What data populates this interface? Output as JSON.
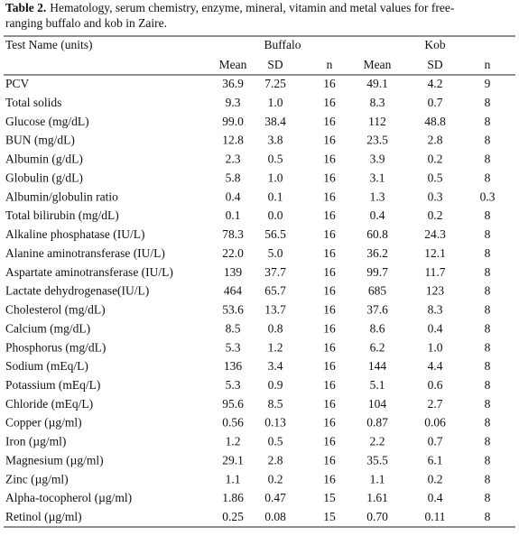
{
  "caption": {
    "label": "Table 2.",
    "lines": [
      "Hematology, serum chemistry, enzyme, mineral, vitamin and metal values for free-",
      "ranging buffalo and kob in Zaire."
    ]
  },
  "table": {
    "header": {
      "name": "Test Name (units)",
      "groups": [
        "Buffalo",
        "Kob"
      ],
      "columns": [
        "Mean",
        "SD",
        "n",
        "Mean",
        "SD",
        "n"
      ]
    },
    "rows": [
      [
        "PCV",
        "36.9",
        "7.25",
        "16",
        "49.1",
        "4.2",
        "9"
      ],
      [
        "Total solids",
        "9.3",
        "1.0",
        "16",
        "8.3",
        "0.7",
        "8"
      ],
      [
        "Glucose (mg/dL)",
        "99.0",
        "38.4",
        "16",
        "112",
        "48.8",
        "8"
      ],
      [
        "BUN (mg/dL)",
        "12.8",
        "3.8",
        "16",
        "23.5",
        "2.8",
        "8"
      ],
      [
        "Albumin (g/dL)",
        "2.3",
        "0.5",
        "16",
        "3.9",
        "0.2",
        "8"
      ],
      [
        "Globulin (g/dL)",
        "5.8",
        "1.0",
        "16",
        "3.1",
        "0.5",
        "8"
      ],
      [
        "Albumin/globulin ratio",
        "0.4",
        "0.1",
        "16",
        "1.3",
        "0.3",
        "0.3"
      ],
      [
        "Total bilirubin (mg/dL)",
        "0.1",
        "0.0",
        "16",
        "0.4",
        "0.2",
        "8"
      ],
      [
        "Alkaline phosphatase (IU/L)",
        "78.3",
        "56.5",
        "16",
        "60.8",
        "24.3",
        "8"
      ],
      [
        "Alanine aminotransferase (IU/L)",
        "22.0",
        "5.0",
        "16",
        "36.2",
        "12.1",
        "8"
      ],
      [
        "Aspartate aminotransferase (IU/L)",
        "139",
        "37.7",
        "16",
        "99.7",
        "11.7",
        "8"
      ],
      [
        "Lactate dehydrogenase(IU/L)",
        "464",
        "65.7",
        "16",
        "685",
        "123",
        "8"
      ],
      [
        "Cholesterol (mg/dL)",
        "53.6",
        "13.7",
        "16",
        "37.6",
        "8.3",
        "8"
      ],
      [
        "Calcium (mg/dL)",
        "8.5",
        "0.8",
        "16",
        "8.6",
        "0.4",
        "8"
      ],
      [
        "Phosphorus (mg/dL)",
        "5.3",
        "1.2",
        "16",
        "6.2",
        "1.0",
        "8"
      ],
      [
        "Sodium (mEq/L)",
        "136",
        "3.4",
        "16",
        "144",
        "4.4",
        "8"
      ],
      [
        "Potassium (mEq/L)",
        "5.3",
        "0.9",
        "16",
        "5.1",
        "0.6",
        "8"
      ],
      [
        "Chloride (mEq/L)",
        "95.6",
        "8.5",
        "16",
        "104",
        "2.7",
        "8"
      ],
      [
        "Copper (µg/ml)",
        "0.56",
        "0.13",
        "16",
        "0.87",
        "0.06",
        "8"
      ],
      [
        "Iron (µg/ml)",
        "1.2",
        "0.5",
        "16",
        "2.2",
        "0.7",
        "8"
      ],
      [
        "Magnesium (µg/ml)",
        "29.1",
        "2.8",
        "16",
        "35.5",
        "6.1",
        "8"
      ],
      [
        "Zinc (µg/ml)",
        "1.1",
        "0.2",
        "16",
        "1.1",
        "0.2",
        "8"
      ],
      [
        "Alpha-tocopherol (µg/ml)",
        "1.86",
        "0.47",
        "15",
        "1.61",
        "0.4",
        "8"
      ],
      [
        "Retinol (µg/ml)",
        "0.25",
        "0.08",
        "15",
        "0.70",
        "0.11",
        "8"
      ]
    ]
  }
}
